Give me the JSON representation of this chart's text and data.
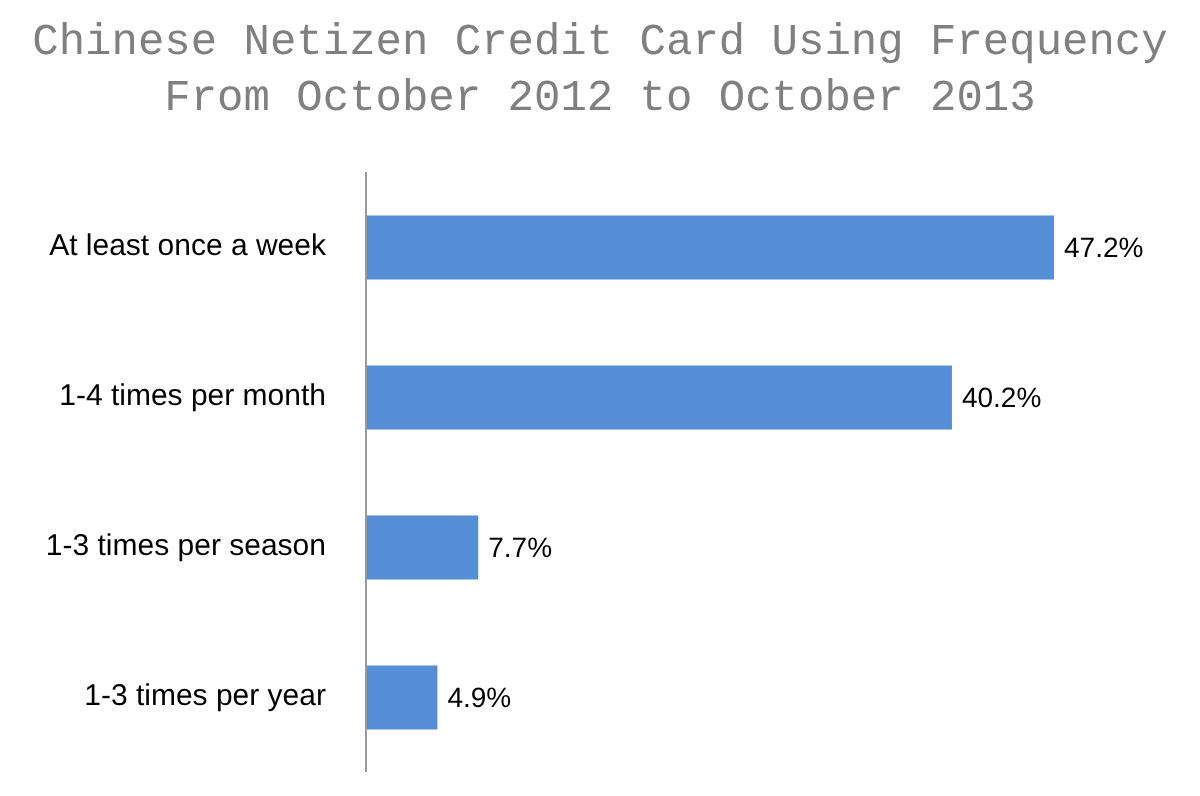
{
  "chart_data": {
    "type": "bar",
    "orientation": "horizontal",
    "title": "Chinese Netizen Credit Card Using Frequency From October 2012 to October 2013",
    "categories": [
      "At least once a week",
      "1-4 times per month",
      "1-3 times per season",
      "1-3 times per year"
    ],
    "values": [
      47.2,
      40.2,
      7.7,
      4.9
    ],
    "value_labels": [
      "47.2%",
      "40.2%",
      "7.7%",
      "4.9%"
    ],
    "color": "#558ed5"
  }
}
